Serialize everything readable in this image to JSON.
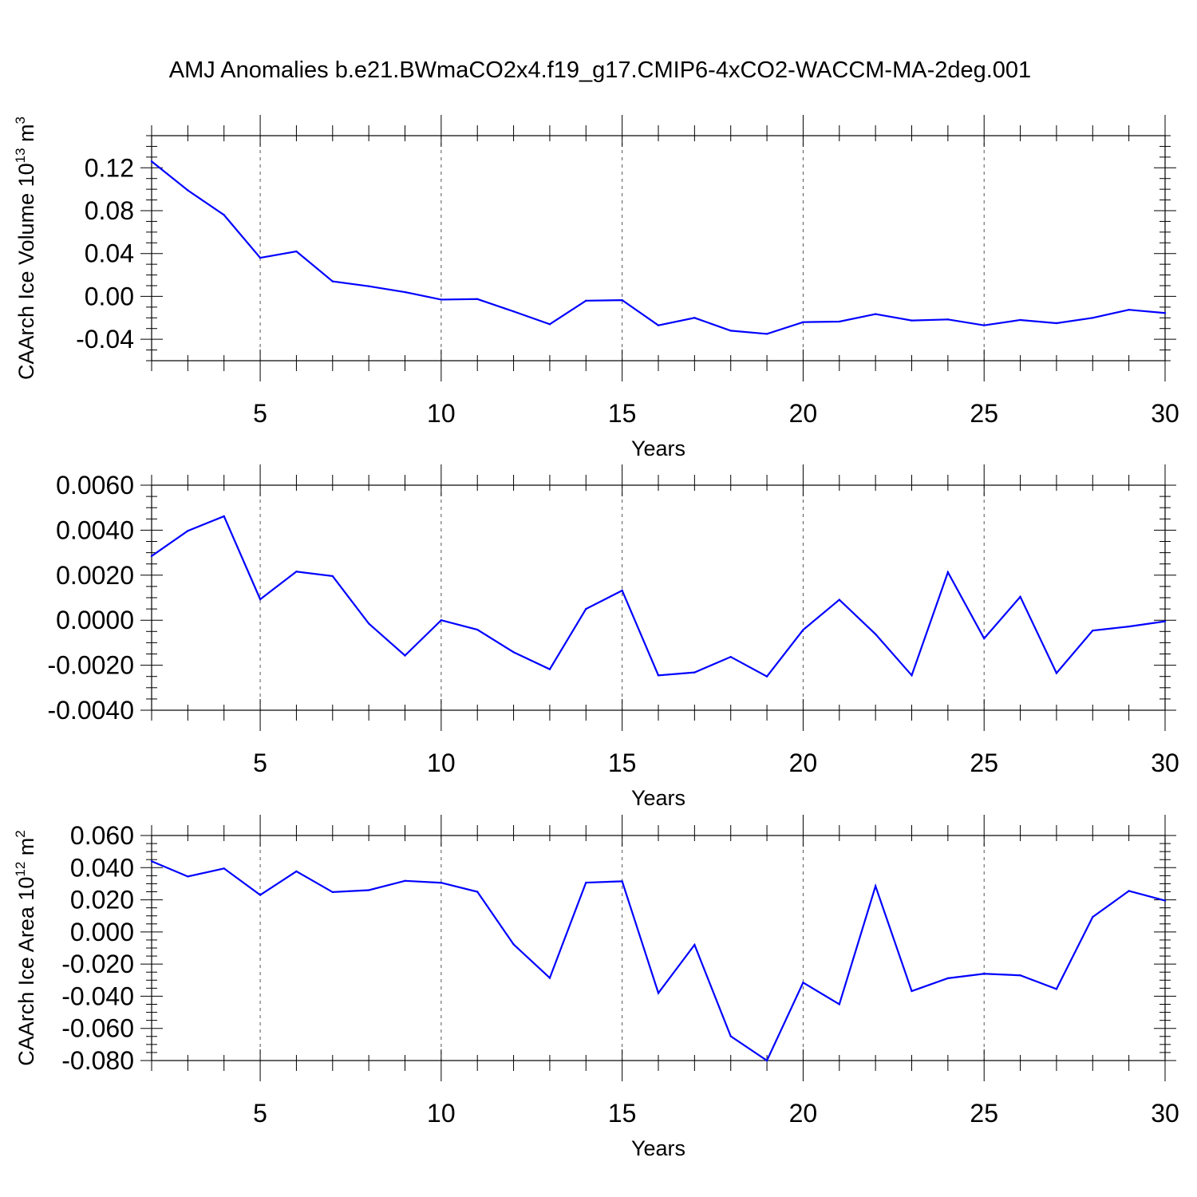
{
  "title": "AMJ Anomalies b.e21.BWmaCO2x4.f19_g17.CMIP6-4xCO2-WACCM-MA-2deg.001",
  "chart_data": [
    {
      "type": "line",
      "title": "AMJ Anomalies b.e21.BWmaCO2x4.f19_g17.CMIP6-4xCO2-WACCM-MA-2deg.001",
      "xlabel": "Years",
      "ylabel_main": "CAArch Ice Volume 10",
      "ylabel_exp": "13",
      "ylabel_unit": "m",
      "ylabel_unit_exp": "3",
      "xlim": [
        2,
        30
      ],
      "ylim": [
        -0.06,
        0.15
      ],
      "xticks": [
        5,
        10,
        15,
        20,
        25,
        30
      ],
      "xtick_labels": [
        "5",
        "10",
        "15",
        "20",
        "25",
        "30"
      ],
      "yticks": [
        -0.04,
        0.0,
        0.04,
        0.08,
        0.12
      ],
      "ytick_labels": [
        "-0.04",
        "0.00",
        "0.04",
        "0.08",
        "0.12"
      ],
      "grid": "vertical dashed at major x ticks",
      "line_color": "#0000ff",
      "series": [
        {
          "x": [
            2,
            3,
            4,
            5,
            6,
            7,
            8,
            9,
            10,
            11,
            12,
            13,
            14,
            15,
            16,
            17,
            18,
            19,
            20,
            21,
            22,
            23,
            24,
            25,
            26,
            27,
            28,
            29,
            30
          ],
          "values": [
            0.126,
            0.099,
            0.076,
            0.036,
            0.042,
            0.014,
            0.0095,
            0.004,
            -0.003,
            -0.0025,
            -0.014,
            -0.026,
            -0.004,
            -0.0035,
            -0.027,
            -0.02,
            -0.032,
            -0.035,
            -0.024,
            -0.0235,
            -0.0165,
            -0.0225,
            -0.0215,
            -0.027,
            -0.022,
            -0.025,
            -0.02,
            -0.0125,
            -0.0155
          ]
        }
      ]
    },
    {
      "type": "line",
      "xlabel": "Years",
      "xlim": [
        2,
        30
      ],
      "ylim": [
        -0.004,
        0.006
      ],
      "xticks": [
        5,
        10,
        15,
        20,
        25,
        30
      ],
      "xtick_labels": [
        "5",
        "10",
        "15",
        "20",
        "25",
        "30"
      ],
      "yticks": [
        -0.004,
        -0.002,
        0.0,
        0.002,
        0.004,
        0.006
      ],
      "ytick_labels": [
        "-0.0040",
        "-0.0020",
        "0.0000",
        "0.0020",
        "0.0040",
        "0.0060"
      ],
      "grid": "vertical dashed at major x ticks",
      "line_color": "#0000ff",
      "series": [
        {
          "x": [
            2,
            3,
            4,
            5,
            6,
            7,
            8,
            9,
            10,
            11,
            12,
            13,
            14,
            15,
            16,
            17,
            18,
            19,
            20,
            21,
            22,
            23,
            24,
            25,
            26,
            27,
            28,
            29,
            30
          ],
          "values": [
            0.00285,
            0.00397,
            0.00462,
            0.00093,
            0.00216,
            0.00196,
            -0.00015,
            -0.00157,
            0.0,
            -0.00042,
            -0.00142,
            -0.00218,
            0.0005,
            0.00132,
            -0.00245,
            -0.00232,
            -0.00163,
            -0.0025,
            -0.00043,
            0.00091,
            -0.00062,
            -0.00245,
            0.00213,
            -0.00081,
            0.00104,
            -0.00235,
            -0.00046,
            -0.00028,
            -5e-05
          ]
        }
      ]
    },
    {
      "type": "line",
      "xlabel": "Years",
      "ylabel_main": "CAArch Ice Area 10",
      "ylabel_exp": "12",
      "ylabel_unit": "m",
      "ylabel_unit_exp": "2",
      "xlim": [
        2,
        30
      ],
      "ylim": [
        -0.08,
        0.06
      ],
      "xticks": [
        5,
        10,
        15,
        20,
        25,
        30
      ],
      "xtick_labels": [
        "5",
        "10",
        "15",
        "20",
        "25",
        "30"
      ],
      "yticks": [
        -0.08,
        -0.06,
        -0.04,
        -0.02,
        0.0,
        0.02,
        0.04,
        0.06
      ],
      "ytick_labels": [
        "-0.080",
        "-0.060",
        "-0.040",
        "-0.020",
        "0.000",
        "0.020",
        "0.040",
        "0.060"
      ],
      "grid": "vertical dashed at major x ticks",
      "line_color": "#0000ff",
      "series": [
        {
          "x": [
            2,
            3,
            4,
            5,
            6,
            7,
            8,
            9,
            10,
            11,
            12,
            13,
            14,
            15,
            16,
            17,
            18,
            19,
            20,
            21,
            22,
            23,
            24,
            25,
            26,
            27,
            28,
            29,
            30
          ],
          "values": [
            0.044,
            0.0345,
            0.0395,
            0.023,
            0.0377,
            0.0248,
            0.026,
            0.0318,
            0.0306,
            0.025,
            -0.0077,
            -0.0286,
            0.0307,
            0.0315,
            -0.038,
            -0.008,
            -0.0649,
            -0.08,
            -0.0315,
            -0.045,
            0.0285,
            -0.0368,
            -0.0288,
            -0.026,
            -0.027,
            -0.0355,
            0.0093,
            0.0255,
            0.0195
          ]
        }
      ]
    }
  ]
}
